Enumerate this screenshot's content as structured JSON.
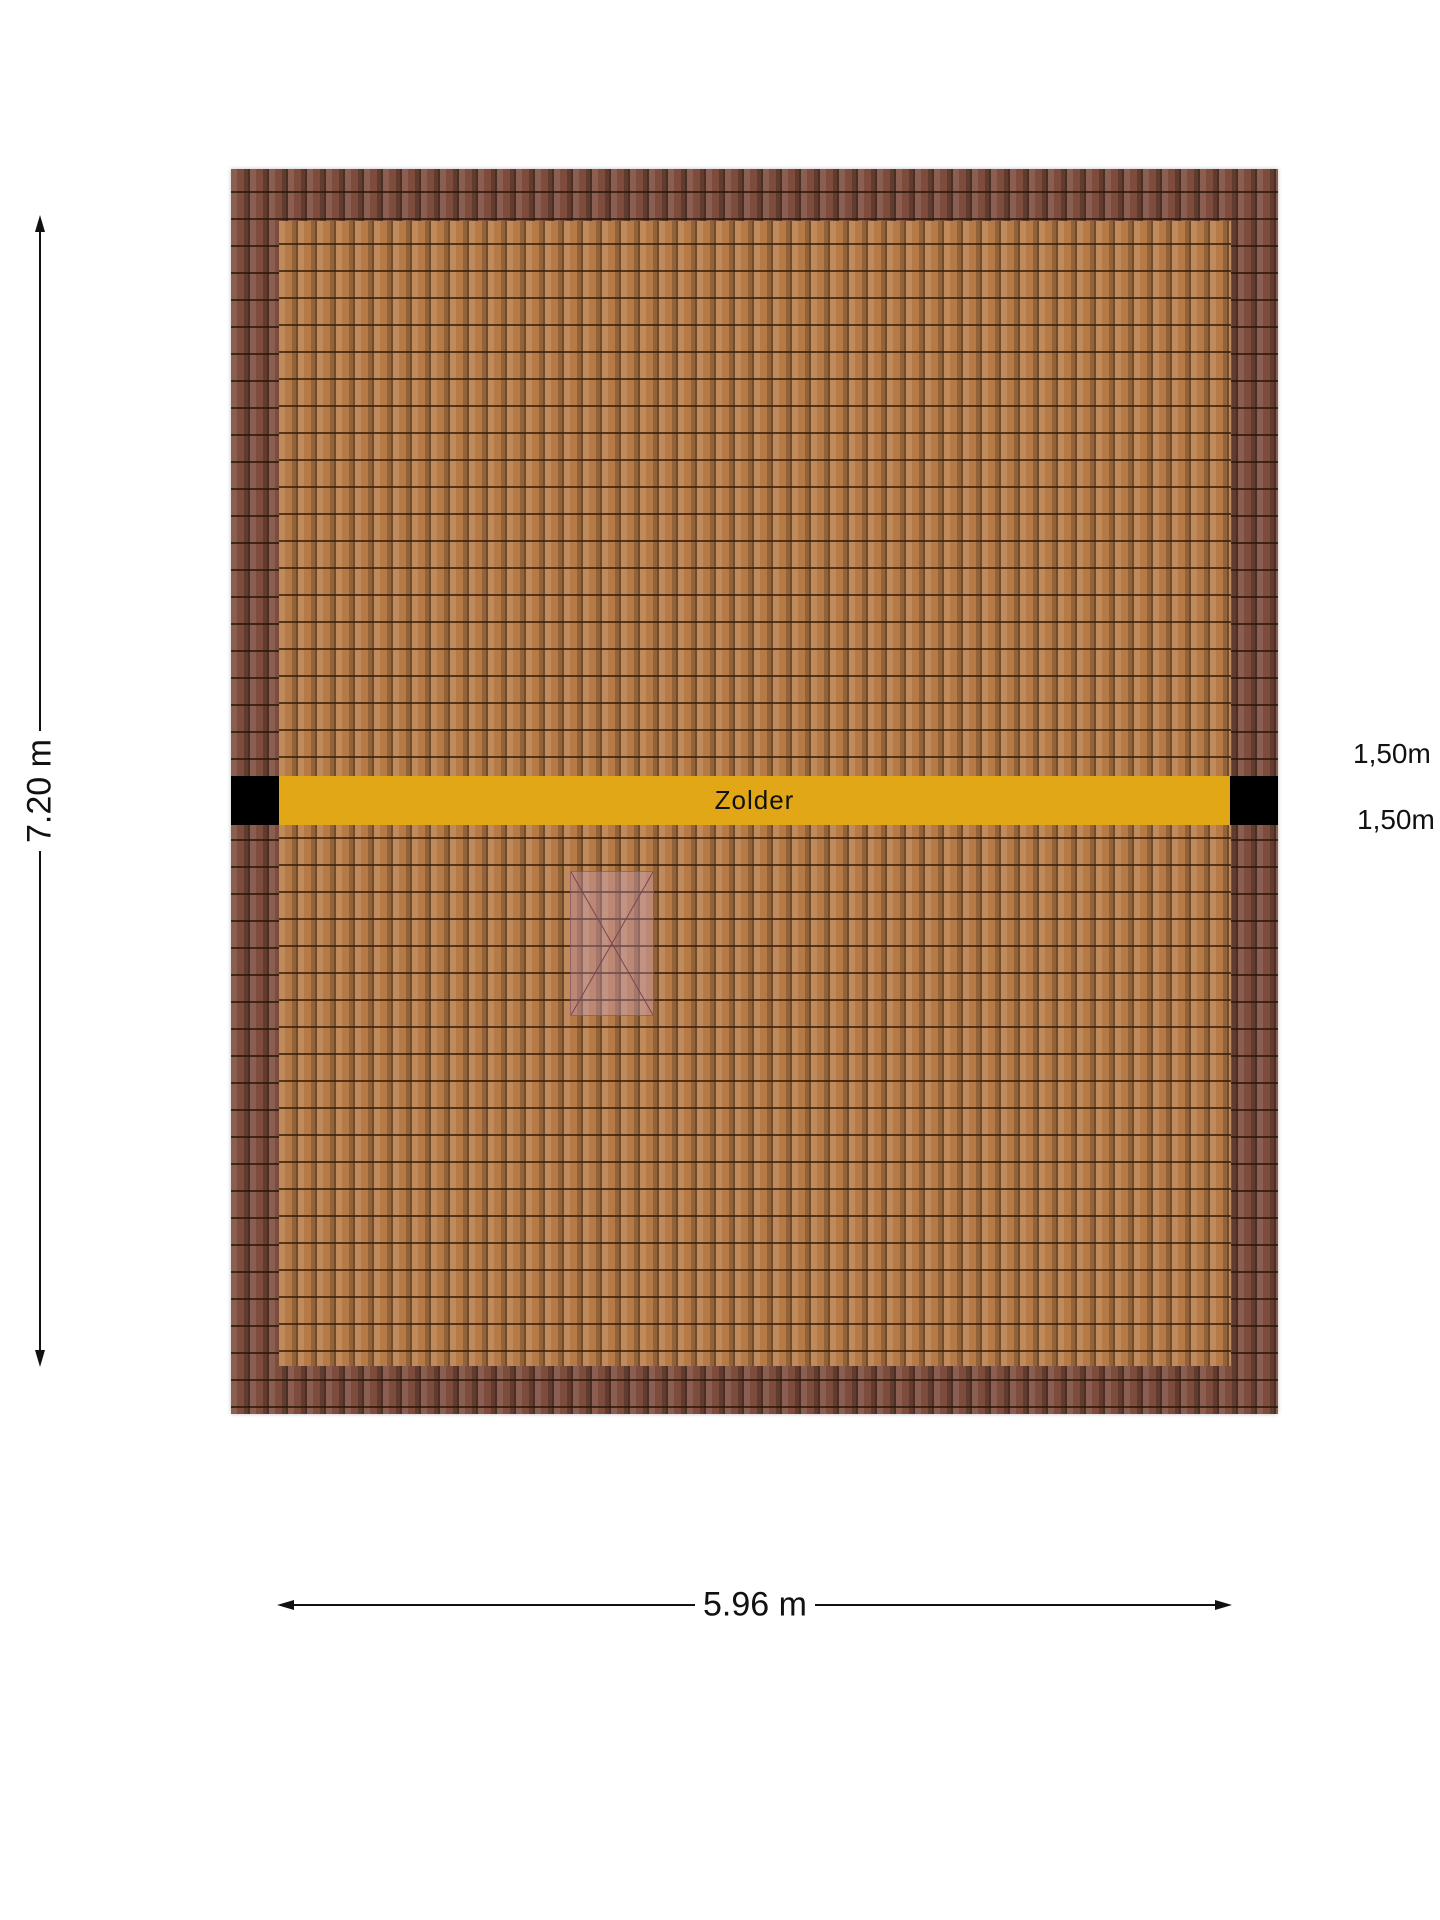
{
  "plan": {
    "room_label": "Zolder",
    "width_label": "5.96 m",
    "height_label": "7.20 m",
    "side_labels": [
      "1,50m",
      "1,50m"
    ],
    "colors": {
      "roof_tile": "#b67a46",
      "roof_edge": "#7d4c3c",
      "band": "#e2a716"
    },
    "icons": {
      "skylight": "skylight-window-icon"
    }
  }
}
